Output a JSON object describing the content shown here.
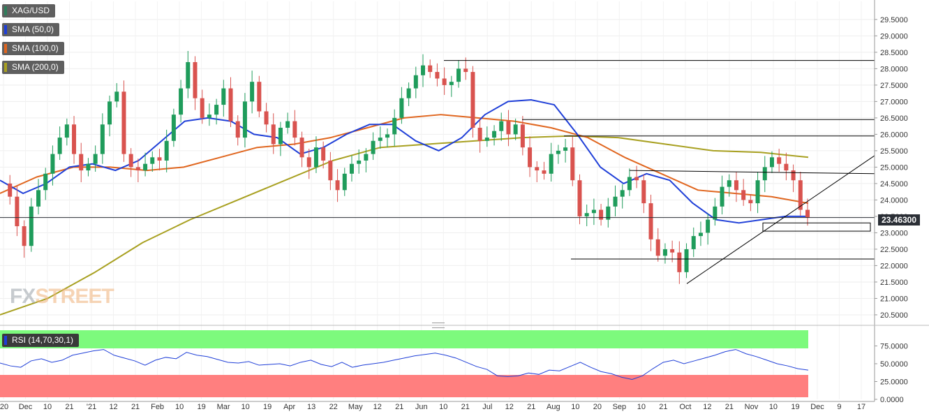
{
  "legend": {
    "symbol": {
      "label": "XAG/USD",
      "color": "#2e7d5b"
    },
    "sma50": {
      "label": "SMA (50,0)",
      "color": "#1f3fd8"
    },
    "sma100": {
      "label": "SMA (100,0)",
      "color": "#e0661f"
    },
    "sma200": {
      "label": "SMA (200,0)",
      "color": "#a8a020"
    }
  },
  "rsi_label": "RSI (14,70,30,1)",
  "last_price_label": "23.46300",
  "watermark": {
    "fx": "FX",
    "street": "STREET"
  },
  "chart_data": {
    "type": "candlestick",
    "symbol": "XAG/USD",
    "price_axis": {
      "ylim": [
        20.35,
        30.05
      ],
      "ticks": [
        "29.5000",
        "29.0000",
        "28.5000",
        "28.0000",
        "27.5000",
        "27.0000",
        "26.5000",
        "26.0000",
        "25.5000",
        "25.0000",
        "24.5000",
        "24.0000",
        "23.5000",
        "23.0000",
        "22.5000",
        "22.0000",
        "21.5000",
        "21.0000",
        "20.5000"
      ]
    },
    "time_axis_labels": [
      "'20",
      "Dec",
      "10",
      "21",
      "'21",
      "12",
      "21",
      "Feb",
      "10",
      "19",
      "Mar",
      "10",
      "19",
      "Apr",
      "13",
      "22",
      "May",
      "12",
      "21",
      "Jun",
      "10",
      "21",
      "Jul",
      "12",
      "21",
      "Aug",
      "10",
      "20",
      "Sep",
      "10",
      "21",
      "Oct",
      "12",
      "21",
      "Nov",
      "10",
      "19",
      "Dec",
      "9",
      "17"
    ],
    "last_price": 23.463,
    "close_series_approx": [
      24.5,
      24.1,
      23.2,
      22.6,
      23.8,
      24.3,
      24.8,
      25.4,
      25.9,
      26.3,
      25.4,
      24.9,
      25.1,
      25.4,
      26.3,
      27.0,
      27.3,
      25.4,
      25.0,
      24.9,
      25.1,
      25.3,
      25.2,
      25.8,
      26.6,
      27.4,
      28.2,
      27.1,
      26.5,
      26.6,
      26.9,
      27.4,
      26.4,
      25.9,
      27.0,
      27.6,
      26.7,
      26.3,
      25.7,
      26.2,
      26.4,
      25.9,
      25.3,
      25.0,
      25.6,
      25.2,
      24.6,
      24.3,
      24.8,
      25.1,
      25.2,
      25.4,
      25.8,
      25.9,
      26.0,
      26.5,
      27.1,
      27.4,
      27.8,
      28.1,
      27.9,
      27.7,
      27.5,
      27.6,
      28.0,
      27.9,
      26.2,
      25.8,
      25.9,
      26.1,
      26.4,
      26.0,
      26.3,
      25.6,
      25.0,
      24.9,
      24.8,
      25.4,
      25.5,
      25.6,
      24.6,
      23.5,
      23.6,
      23.7,
      23.4,
      23.8,
      24.1,
      24.3,
      24.7,
      24.6,
      23.9,
      22.8,
      22.3,
      22.5,
      22.4,
      21.8,
      22.5,
      22.9,
      23.0,
      23.4,
      23.8,
      24.4,
      24.6,
      24.3,
      24.0,
      23.9,
      24.6,
      25.0,
      25.3,
      25.1,
      24.9,
      24.6,
      23.7,
      23.46
    ],
    "sma50_approx": [
      24.6,
      24.2,
      24.5,
      25.0,
      25.1,
      24.9,
      25.2,
      25.8,
      26.4,
      26.5,
      26.4,
      26.0,
      25.9,
      25.4,
      25.6,
      26.0,
      26.3,
      26.3,
      25.8,
      25.5,
      25.9,
      26.6,
      27.0,
      27.05,
      26.9,
      26.0,
      25.0,
      24.5,
      24.8,
      24.6,
      23.9,
      23.4,
      23.3,
      23.4,
      23.5,
      23.5
    ],
    "sma100_approx": [
      24.2,
      24.7,
      25.0,
      25.0,
      24.9,
      25.0,
      25.3,
      25.6,
      25.7,
      25.9,
      26.2,
      26.5,
      26.6,
      26.5,
      26.4,
      26.2,
      25.9,
      25.3,
      24.8,
      24.3,
      24.2,
      24.1,
      23.9
    ],
    "sma200_approx": [
      20.5,
      21.0,
      21.8,
      22.7,
      23.4,
      24.0,
      24.6,
      25.2,
      25.6,
      25.7,
      25.8,
      25.9,
      25.95,
      25.9,
      25.7,
      25.5,
      25.45,
      25.3
    ],
    "horizontal_lines": [
      28.25,
      26.45,
      25.95,
      22.2
    ],
    "trendlines": [
      {
        "from": [
          24.9,
          "Sep"
        ],
        "to": [
          24.8,
          "Dec"
        ]
      },
      {
        "from": [
          21.45,
          "Oct"
        ],
        "to": [
          25.35,
          "Dec"
        ]
      }
    ],
    "support_box": [
      23.05,
      23.3
    ],
    "rsi": {
      "ylim": [
        0,
        100
      ],
      "ticks": [
        "75.0000",
        "50.0000",
        "25.0000",
        "0.0000"
      ],
      "overbought": 70,
      "oversold": 30,
      "values_approx": [
        51,
        47,
        45,
        54,
        57,
        52,
        55,
        62,
        65,
        68,
        70,
        62,
        58,
        54,
        48,
        55,
        59,
        57,
        66,
        62,
        60,
        56,
        52,
        51,
        53,
        48,
        49,
        50,
        47,
        52,
        55,
        49,
        46,
        52,
        45,
        48,
        50,
        52,
        55,
        58,
        61,
        63,
        65,
        62,
        58,
        52,
        46,
        42,
        33,
        32,
        33,
        37,
        35,
        41,
        40,
        46,
        52,
        45,
        39,
        36,
        31,
        28,
        33,
        43,
        52,
        55,
        50,
        54,
        58,
        62,
        67,
        70,
        64,
        60,
        55,
        50,
        47,
        43,
        41
      ]
    }
  }
}
